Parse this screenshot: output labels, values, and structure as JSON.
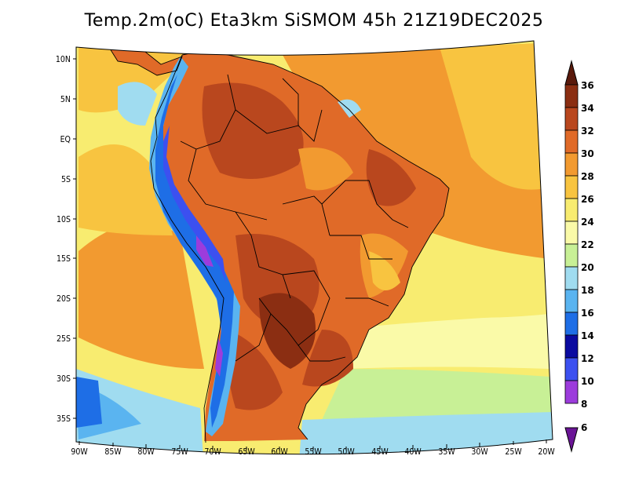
{
  "title": "Temp.2m(oC) Eta3km SiSMOM 45h 21Z19DEC2025",
  "map": {
    "variable": "2m temperature",
    "units": "oC",
    "lat_labels": [
      "10N",
      "5N",
      "EQ",
      "5S",
      "10S",
      "15S",
      "20S",
      "25S",
      "30S",
      "35S"
    ],
    "lon_labels": [
      "90W",
      "85W",
      "80W",
      "75W",
      "70W",
      "65W",
      "60W",
      "55W",
      "50W",
      "45W",
      "40W",
      "35W",
      "30W",
      "25W",
      "20W"
    ]
  },
  "colorbar": {
    "levels": [
      "36",
      "34",
      "32",
      "30",
      "28",
      "26",
      "24",
      "22",
      "20",
      "18",
      "16",
      "14",
      "12",
      "10",
      "8",
      "6"
    ],
    "colors": [
      "#5a1a0c",
      "#8b2e12",
      "#b9471e",
      "#e06a28",
      "#f29a30",
      "#f8c440",
      "#f8ec70",
      "#fafaa8",
      "#c8f096",
      "#a0dcf0",
      "#5ab4f0",
      "#1e6ee6",
      "#0a0aa0",
      "#3c50f0",
      "#9c3cdc",
      "#6a1496"
    ]
  },
  "colors": {
    "ocean_warm": "#f8c440",
    "ocean_mild": "#f8ec70",
    "ocean_pale": "#fafaa8",
    "land_hot": "#e06a28",
    "land_very_hot": "#b9471e",
    "land_extreme": "#8b2e12",
    "cool": "#c8f096",
    "cold": "#a0dcf0",
    "colder": "#5ab4f0",
    "coldest": "#1e6ee6"
  }
}
